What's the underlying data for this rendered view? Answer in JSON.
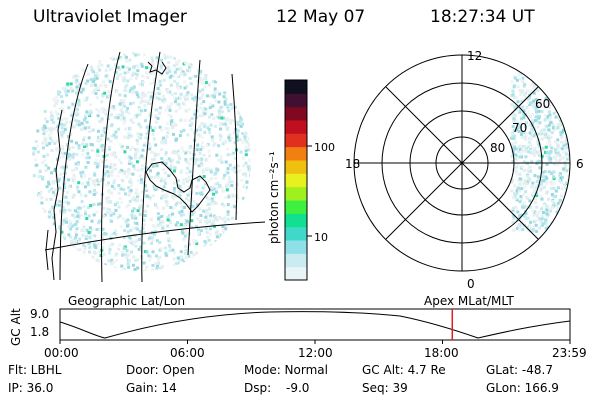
{
  "header": {
    "instrument": "Ultraviolet Imager",
    "date": "12 May 07",
    "time": "18:27:34 UT"
  },
  "left_panel": {
    "label": "Geographic Lat/Lon"
  },
  "right_panel": {
    "label": "Apex MLat/MLT",
    "mlt_labels": [
      "12",
      "18",
      "6",
      "0"
    ],
    "lat_labels": [
      "60",
      "70",
      "80"
    ]
  },
  "colorbar": {
    "unit_label": "photon cm⁻²s⁻¹",
    "ticks": [
      "100",
      "10"
    ],
    "colors": [
      "#e8f4f6",
      "#c8ecf2",
      "#8fe0e8",
      "#40d8c8",
      "#10e090",
      "#40f040",
      "#a0f020",
      "#e8f020",
      "#f0c010",
      "#f08010",
      "#e03020",
      "#c01020",
      "#800820",
      "#401030",
      "#101020"
    ]
  },
  "altitude_plot": {
    "ylabel": "GC Alt",
    "yticks": [
      "9.0",
      "1.8"
    ],
    "xticks": [
      "00:00",
      "06:00",
      "12:00",
      "18:00",
      "23:59"
    ],
    "current_time_hours": 18.46,
    "marker_color": "#e02020"
  },
  "status": {
    "filter": "Flt: LBHL",
    "ip": "IP: 36.0",
    "door": "Door: Open",
    "gain": "Gain: 14",
    "mode": "Mode: Normal",
    "dsp_label": "Dsp:",
    "dsp_value": "-9.0",
    "gc_alt": "GC Alt: 4.7 Re",
    "seq": "Seq: 39",
    "glat": "GLat: -48.7",
    "glon": "GLon: 166.9"
  }
}
